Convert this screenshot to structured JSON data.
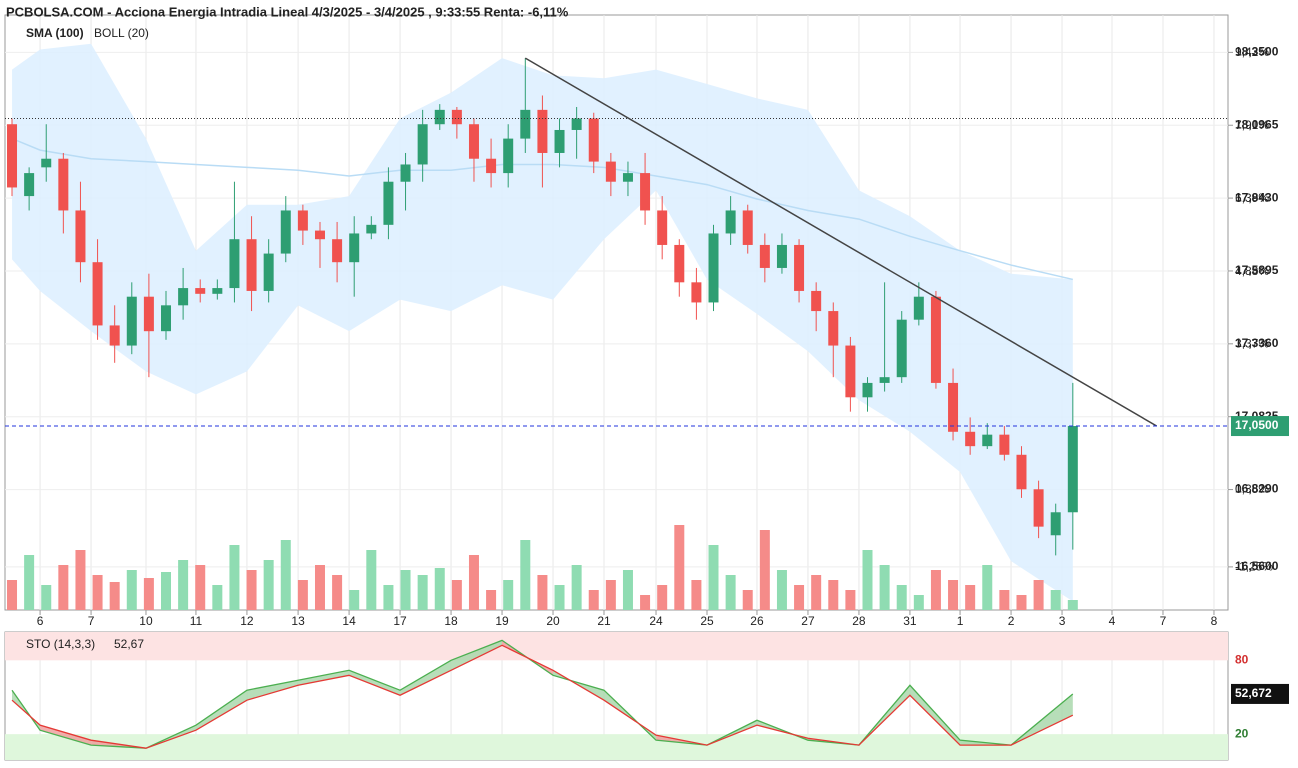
{
  "chart_data": [
    {
      "type": "candlestick",
      "title": "PCBOLSA.COM - Acciona Energia Intradia Lineal 4/3/2025 - 3/4/2025 , 9:33:55 Renta: -6,11%",
      "x": [
        0,
        1,
        2,
        3,
        4,
        5,
        6,
        7,
        8,
        9,
        10,
        11,
        12,
        13,
        14,
        15,
        16,
        17,
        18,
        19,
        20,
        21,
        22,
        23,
        24,
        25,
        26,
        27,
        28,
        29,
        30,
        31,
        32,
        33,
        34,
        35,
        36,
        37,
        38,
        39,
        40,
        41,
        42,
        43,
        44,
        45,
        46,
        47,
        48,
        49,
        50,
        51,
        52,
        53,
        54,
        55,
        56,
        57,
        58,
        59,
        60,
        61,
        62
      ],
      "open": [
        18.1,
        17.85,
        17.95,
        17.98,
        17.8,
        17.62,
        17.4,
        17.33,
        17.5,
        17.38,
        17.47,
        17.53,
        17.51,
        17.53,
        17.7,
        17.52,
        17.65,
        17.8,
        17.73,
        17.7,
        17.62,
        17.72,
        17.75,
        17.9,
        17.96,
        18.1,
        18.15,
        18.1,
        17.98,
        17.93,
        18.05,
        18.15,
        18.0,
        18.08,
        18.12,
        17.97,
        17.9,
        17.93,
        17.8,
        17.68,
        17.55,
        17.48,
        17.72,
        17.8,
        17.68,
        17.6,
        17.68,
        17.52,
        17.45,
        17.33,
        17.15,
        17.2,
        17.22,
        17.42,
        17.5,
        17.2,
        17.03,
        16.98,
        17.02,
        16.95,
        16.83,
        16.67,
        16.75
      ],
      "high": [
        18.12,
        17.95,
        18.1,
        18.0,
        17.9,
        17.7,
        17.47,
        17.55,
        17.58,
        17.52,
        17.6,
        17.56,
        17.56,
        17.9,
        17.78,
        17.7,
        17.85,
        17.82,
        17.76,
        17.76,
        17.78,
        17.78,
        17.95,
        18.0,
        18.15,
        18.17,
        18.16,
        18.12,
        18.05,
        18.1,
        18.33,
        18.2,
        18.12,
        18.16,
        18.14,
        18.0,
        17.97,
        18.0,
        17.85,
        17.7,
        17.6,
        17.75,
        17.85,
        17.82,
        17.72,
        17.72,
        17.7,
        17.55,
        17.48,
        17.36,
        17.22,
        17.55,
        17.45,
        17.55,
        17.52,
        17.25,
        17.08,
        17.06,
        17.05,
        16.98,
        16.86,
        16.78,
        17.2
      ],
      "low": [
        17.85,
        17.8,
        17.9,
        17.72,
        17.55,
        17.35,
        17.27,
        17.3,
        17.22,
        17.35,
        17.42,
        17.48,
        17.49,
        17.48,
        17.45,
        17.48,
        17.62,
        17.68,
        17.6,
        17.55,
        17.5,
        17.7,
        17.7,
        17.8,
        17.9,
        18.08,
        18.05,
        17.9,
        17.88,
        17.88,
        18.0,
        17.88,
        17.95,
        17.98,
        17.93,
        17.85,
        17.85,
        17.75,
        17.63,
        17.5,
        17.42,
        17.45,
        17.68,
        17.65,
        17.55,
        17.58,
        17.48,
        17.38,
        17.22,
        17.1,
        17.1,
        17.17,
        17.2,
        17.4,
        17.18,
        17.0,
        16.95,
        16.97,
        16.93,
        16.8,
        16.66,
        16.6,
        16.62
      ],
      "close": [
        17.88,
        17.93,
        17.98,
        17.8,
        17.62,
        17.4,
        17.33,
        17.5,
        17.38,
        17.47,
        17.53,
        17.51,
        17.53,
        17.7,
        17.52,
        17.65,
        17.8,
        17.73,
        17.7,
        17.62,
        17.72,
        17.75,
        17.9,
        17.96,
        18.1,
        18.15,
        18.1,
        17.98,
        17.93,
        18.05,
        18.15,
        18.0,
        18.08,
        18.12,
        17.97,
        17.9,
        17.93,
        17.8,
        17.68,
        17.55,
        17.48,
        17.72,
        17.8,
        17.68,
        17.6,
        17.68,
        17.52,
        17.45,
        17.33,
        17.15,
        17.2,
        17.22,
        17.42,
        17.5,
        17.2,
        17.03,
        16.98,
        17.02,
        16.95,
        16.83,
        16.7,
        16.75,
        17.05
      ],
      "volume": [
        30,
        55,
        25,
        45,
        60,
        35,
        28,
        40,
        32,
        38,
        50,
        45,
        25,
        65,
        40,
        50,
        70,
        30,
        45,
        35,
        20,
        60,
        25,
        40,
        35,
        42,
        30,
        55,
        20,
        30,
        70,
        35,
        25,
        45,
        20,
        30,
        40,
        15,
        25,
        85,
        30,
        65,
        35,
        20,
        80,
        40,
        25,
        35,
        30,
        20,
        60,
        45,
        25,
        15,
        40,
        30,
        25,
        45,
        20,
        15,
        30,
        20,
        10
      ],
      "volume_lim": [
        0,
        100
      ],
      "up_color": "#2e9e72",
      "down_color": "#f0524f",
      "up_volume_color": "#8fdcb2",
      "down_volume_color": "#f58b89",
      "xlim": [
        -0.41,
        71.07
      ],
      "xticks": [
        {
          "value": 1.64,
          "label": "6"
        },
        {
          "value": 4.62,
          "label": "7"
        },
        {
          "value": 7.83,
          "label": "10"
        },
        {
          "value": 10.75,
          "label": "11"
        },
        {
          "value": 13.73,
          "label": "12"
        },
        {
          "value": 16.72,
          "label": "13"
        },
        {
          "value": 19.7,
          "label": "14"
        },
        {
          "value": 22.68,
          "label": "17"
        },
        {
          "value": 25.66,
          "label": "18"
        },
        {
          "value": 28.64,
          "label": "19"
        },
        {
          "value": 31.62,
          "label": "20"
        },
        {
          "value": 34.6,
          "label": "21"
        },
        {
          "value": 37.64,
          "label": "24"
        },
        {
          "value": 40.62,
          "label": "25"
        },
        {
          "value": 43.54,
          "label": "26"
        },
        {
          "value": 46.52,
          "label": "27"
        },
        {
          "value": 49.5,
          "label": "28"
        },
        {
          "value": 52.48,
          "label": "31"
        },
        {
          "value": 55.41,
          "label": "1"
        },
        {
          "value": 58.39,
          "label": "2"
        },
        {
          "value": 61.37,
          "label": "3"
        },
        {
          "value": 64.29,
          "label": "4"
        },
        {
          "value": 67.27,
          "label": "7"
        },
        {
          "value": 70.25,
          "label": "8"
        }
      ],
      "ylim": [
        16.41,
        18.48
      ],
      "yticks": [
        {
          "value": 16.56,
          "label": "16,5600"
        },
        {
          "value": 16.829,
          "label": "16,8290"
        },
        {
          "value": 17.0825,
          "label": "17,0825"
        },
        {
          "value": 17.336,
          "label": "17,3360"
        },
        {
          "value": 17.5895,
          "label": "17,5895"
        },
        {
          "value": 17.843,
          "label": "17,8430"
        },
        {
          "value": 18.0965,
          "label": "18,0965"
        },
        {
          "value": 18.35,
          "label": "18,3500"
        }
      ],
      "y2lim": [
        -2.14,
        10.21
      ],
      "y2ticks": [
        {
          "value": -1.25,
          "label": "-1,25%"
        },
        {
          "value": 0.35,
          "label": "0,35%"
        },
        {
          "value": 3.37,
          "label": "3,37%"
        },
        {
          "value": 4.88,
          "label": "4,88%"
        },
        {
          "value": 6.39,
          "label": "6,39%"
        },
        {
          "value": 7.91,
          "label": "7,91%"
        },
        {
          "value": 9.42,
          "label": "9,42%"
        }
      ],
      "grid": true,
      "overlays": {
        "x": [
          0,
          1.64,
          4.62,
          7.83,
          10.75,
          13.73,
          16.72,
          19.7,
          22.68,
          25.66,
          28.64,
          31.62,
          34.6,
          37.64,
          40.62,
          43.54,
          46.52,
          49.5,
          52.48,
          55.41,
          58.39,
          62
        ],
        "sma": {
          "name": "SMA (100)",
          "color": "#b9dcf5",
          "values": [
            18.05,
            18.01,
            17.98,
            17.97,
            17.96,
            17.95,
            17.94,
            17.92,
            17.94,
            17.94,
            17.96,
            17.96,
            17.95,
            17.92,
            17.89,
            17.84,
            17.8,
            17.77,
            17.71,
            17.66,
            17.61,
            17.56
          ]
        },
        "boll": {
          "name": "BOLL (20)",
          "color": "#cccccc",
          "fill": "#dcefff",
          "upper": [
            18.29,
            18.36,
            18.38,
            18.05,
            17.66,
            17.82,
            17.82,
            17.85,
            18.12,
            18.21,
            18.33,
            18.27,
            18.26,
            18.29,
            18.24,
            18.19,
            18.15,
            17.87,
            17.78,
            17.66,
            17.58,
            17.56
          ],
          "lower": [
            17.63,
            17.52,
            17.38,
            17.24,
            17.16,
            17.24,
            17.47,
            17.38,
            17.49,
            17.45,
            17.54,
            17.49,
            17.7,
            17.87,
            17.56,
            17.44,
            17.31,
            17.14,
            17.03,
            16.89,
            16.58,
            16.44
          ]
        }
      },
      "level": 18.12,
      "last_price": {
        "value": 17.05,
        "label": "17,0500"
      },
      "trendline": {
        "x": [
          30,
          66.9
        ],
        "y": [
          18.33,
          17.05
        ]
      }
    },
    {
      "type": "stochastic",
      "label": "STO (14,3,3)",
      "value_label": "52,67",
      "last_value": {
        "value": 52.672,
        "label": "52,672"
      },
      "x": [
        0,
        1.64,
        4.62,
        7.83,
        10.75,
        13.73,
        16.72,
        19.7,
        22.68,
        25.66,
        28.64,
        31.62,
        34.6,
        37.64,
        40.62,
        43.54,
        46.52,
        49.5,
        52.48,
        55.41,
        58.39,
        62
      ],
      "series": [
        {
          "color": "#4caf50",
          "values": [
            55.7,
            23.2,
            11.1,
            8.6,
            27.3,
            55.7,
            63.8,
            71.9,
            55.7,
            80,
            96.2,
            67.8,
            55.7,
            15.1,
            11.1,
            31.3,
            15.1,
            11.1,
            59.7,
            15.1,
            11.1,
            52.67
          ]
        },
        {
          "color": "#e53935",
          "values": [
            47.6,
            27.3,
            15.1,
            8.6,
            23.2,
            47.6,
            59.7,
            67.8,
            51.6,
            71.9,
            92.2,
            71.9,
            47.6,
            19.2,
            11.1,
            27.3,
            16.7,
            11.1,
            51.6,
            11.1,
            11.1,
            35.4
          ]
        }
      ],
      "xlim": [
        -0.41,
        71.07
      ],
      "ylim": [
        -1,
        103
      ],
      "yticks": [
        20,
        80
      ]
    }
  ]
}
